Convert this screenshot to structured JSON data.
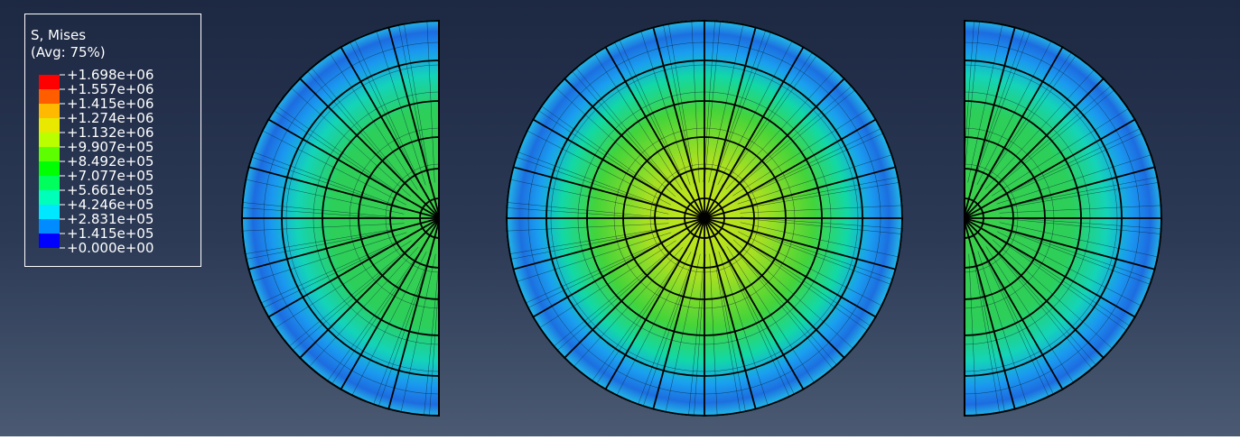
{
  "legend": {
    "title": "S, Mises",
    "subtitle": "(Avg: 75%)",
    "labels": [
      "+1.698e+06",
      "+1.557e+06",
      "+1.415e+06",
      "+1.274e+06",
      "+1.132e+06",
      "+9.907e+05",
      "+8.492e+05",
      "+7.077e+05",
      "+5.661e+05",
      "+4.246e+05",
      "+2.831e+05",
      "+1.415e+05",
      "+0.000e+00"
    ],
    "colors": [
      "#ff0000",
      "#ff5d00",
      "#ffb900",
      "#e8e800",
      "#b9ff00",
      "#5dff00",
      "#00ff00",
      "#00ff5d",
      "#00ffb9",
      "#00e8ff",
      "#008bff",
      "#0000ff"
    ]
  }
}
